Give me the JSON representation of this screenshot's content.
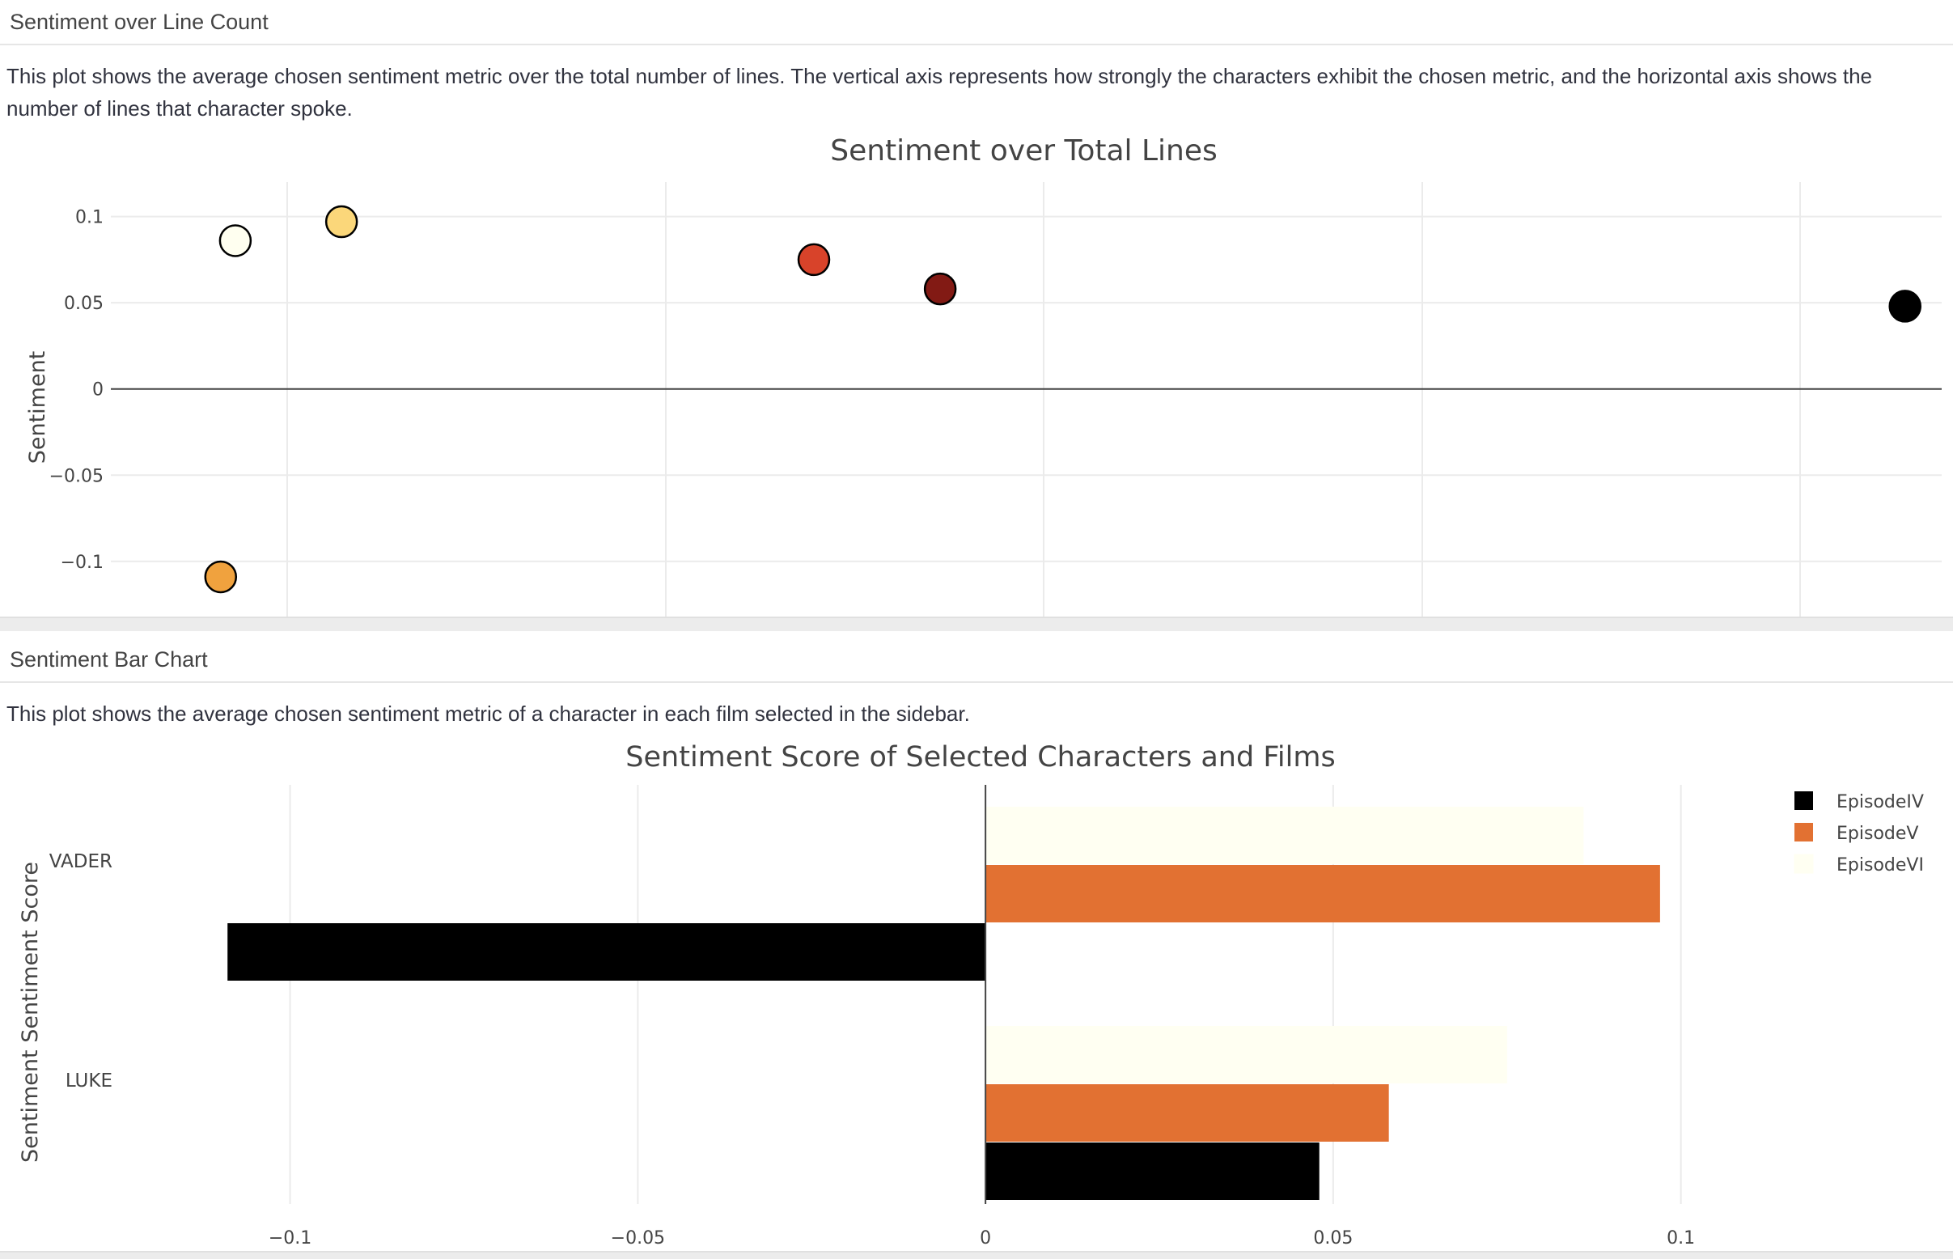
{
  "scatter_section": {
    "header": "Sentiment over Line Count",
    "description": "This plot shows the average chosen sentiment metric over the total number of lines. The vertical axis represents how strongly the characters exhibit the chosen metric, and the horizontal axis shows the number of lines that character spoke."
  },
  "bar_section": {
    "header": "Sentiment Bar Chart",
    "description": "This plot shows the average chosen sentiment metric of a character in each film selected in the sidebar."
  },
  "chart_data": [
    {
      "type": "scatter",
      "title": "Sentiment over Total Lines",
      "xlabel": "",
      "ylabel": "Sentiment",
      "ylim": [
        -0.132,
        0.12
      ],
      "yticks": [
        0.1,
        0.05,
        0,
        -0.05,
        -0.1
      ],
      "ytick_labels": [
        "0.1",
        "0.05",
        "0",
        "−0.05",
        "−0.1"
      ],
      "xlim": [
        0,
        1
      ],
      "grid": true,
      "points": [
        {
          "x": 0.068,
          "y": 0.086,
          "color": "#fffff0"
        },
        {
          "x": 0.126,
          "y": 0.097,
          "color": "#fbd77a"
        },
        {
          "x": 0.384,
          "y": 0.075,
          "color": "#d8432a"
        },
        {
          "x": 0.453,
          "y": 0.058,
          "color": "#821a14"
        },
        {
          "x": 0.98,
          "y": 0.048,
          "color": "#000000"
        },
        {
          "x": 0.06,
          "y": -0.109,
          "color": "#f0a23e"
        }
      ]
    },
    {
      "type": "bar",
      "orientation": "horizontal",
      "title": "Sentiment Score of Selected Characters and Films",
      "xlabel": "",
      "ylabel": "Sentiment Sentiment Score",
      "xlim": [
        -0.1245,
        0.1375
      ],
      "xticks": [
        -0.1,
        -0.05,
        0,
        0.05,
        0.1
      ],
      "xtick_labels": [
        "−0.1",
        "−0.05",
        "0",
        "0.05",
        "0.1"
      ],
      "categories": [
        "VADER",
        "LUKE"
      ],
      "series": [
        {
          "name": "EpisodeIV",
          "color": "#000000",
          "values": [
            -0.109,
            0.048
          ]
        },
        {
          "name": "EpisodeV",
          "color": "#e27132",
          "values": [
            0.097,
            0.058
          ]
        },
        {
          "name": "EpisodeVI",
          "color": "#fffff2",
          "values": [
            0.086,
            0.075
          ]
        }
      ],
      "legend_position": "top-right",
      "grid": true
    }
  ]
}
